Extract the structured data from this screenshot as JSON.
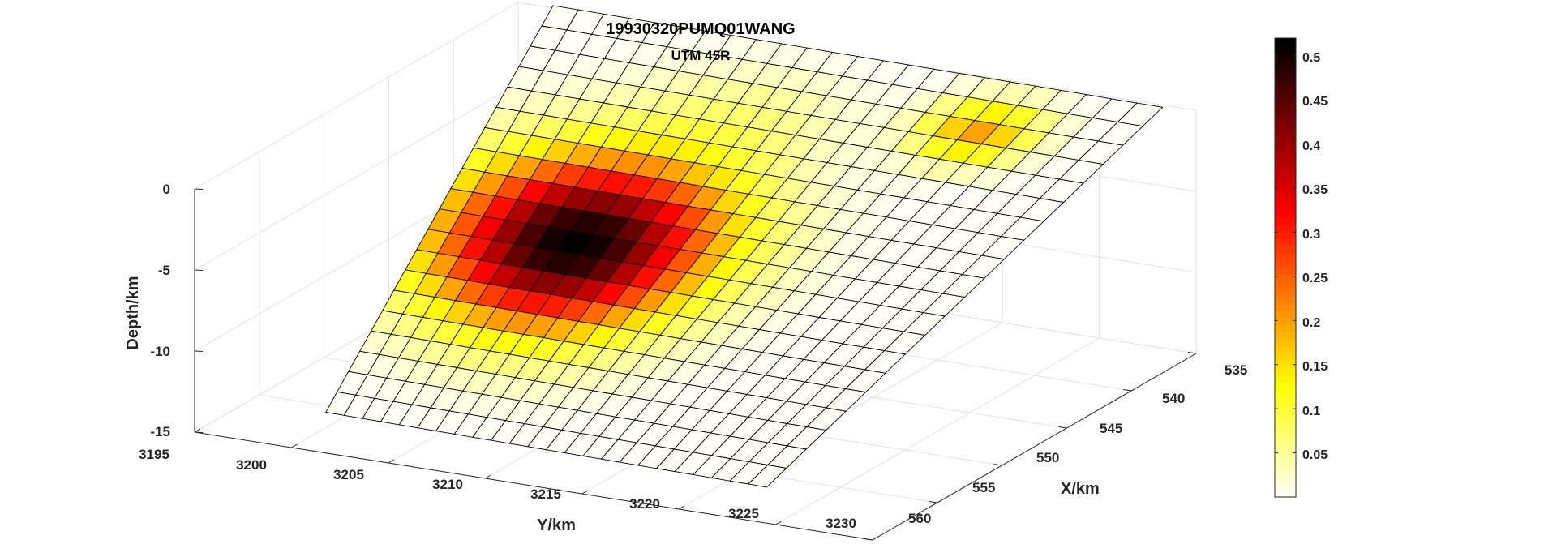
{
  "chart_data": {
    "type": "heatmap",
    "title": "19930320PUMQ01WANG",
    "subtitle": "UTM 45R",
    "xlabel": "X/km",
    "ylabel": "Y/km",
    "zlabel": "Depth/km",
    "x_ticks": [
      535,
      540,
      545,
      550,
      555,
      560
    ],
    "y_ticks": [
      3195,
      3200,
      3205,
      3210,
      3215,
      3220,
      3225,
      3230
    ],
    "z_ticks": [
      0,
      -5,
      -10,
      -15
    ],
    "xlim": [
      535,
      560
    ],
    "ylim": [
      3195,
      3230
    ],
    "zlim": [
      -15,
      0
    ],
    "colorbar": {
      "colormap": "hot",
      "ticks": [
        0.05,
        0.1,
        0.15,
        0.2,
        0.25,
        0.3,
        0.35,
        0.4,
        0.45,
        0.5
      ],
      "range": [
        0,
        0.52
      ]
    },
    "grid": true,
    "fault_plane": {
      "rows": 20,
      "cols": 24,
      "corners_xyz_km": {
        "top_far": [
          535.6,
          3197.2,
          0.5
        ],
        "top_near": [
          536.1,
          3229.0,
          0.5
        ],
        "bottom_near": [
          559.8,
          3224.4,
          -12.9
        ],
        "bottom_far": [
          559.3,
          3201.3,
          -12.9
        ]
      },
      "slip_peak_m": 0.52,
      "slip_peak_cell": {
        "row": 10,
        "col": 6
      },
      "secondary_peak_slip_m": 0.25,
      "secondary_peak_cell": {
        "row": 2,
        "col": 18
      }
    }
  }
}
